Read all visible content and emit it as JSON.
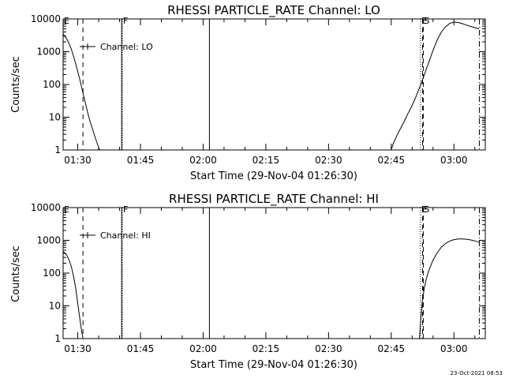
{
  "footer_timestamp": "23-Oct-2021 08:53",
  "chart_data": [
    {
      "type": "line",
      "title": "RHESSI PARTICLE_RATE Channel: LO",
      "xlabel": "Start Time (29-Nov-04 01:26:30)",
      "ylabel": "Counts/sec",
      "yscale": "log",
      "ylim": [
        1,
        10000
      ],
      "xlim": [
        "01:26:30",
        "03:07:30"
      ],
      "ytick_labels": [
        "1",
        "10",
        "100",
        "1000",
        "10000"
      ],
      "yticks": [
        1,
        10,
        100,
        1000,
        10000
      ],
      "xtick_labels": [
        "01:30",
        "01:45",
        "02:00",
        "02:15",
        "02:30",
        "02:45",
        "03:00"
      ],
      "legend": {
        "label": "Channel: LO",
        "position": "top-left"
      },
      "markers": [
        {
          "label": "E",
          "time": "01:26:30",
          "style": "dotted"
        },
        {
          "label": "F",
          "time": "01:40:40",
          "style": "dotted"
        },
        {
          "label": "E",
          "time": "02:52:00",
          "style": "dotted"
        },
        {
          "label": "S",
          "time": "02:52:40",
          "style": "solid-dashed"
        }
      ],
      "vlines": [
        {
          "time": "01:31:15",
          "style": "dashed"
        },
        {
          "time": "01:40:30",
          "style": "solid"
        },
        {
          "time": "02:01:30",
          "style": "solid"
        },
        {
          "time": "02:52:30",
          "style": "dashed"
        },
        {
          "time": "03:06:05",
          "style": "dashdot"
        }
      ],
      "series": [
        {
          "segments": [
            {
              "x": [
                "01:26:30",
                "01:27:00",
                "01:27:30",
                "01:28:00",
                "01:28:30",
                "01:29:00",
                "01:29:30",
                "01:30:00",
                "01:30:30",
                "01:31:00",
                "01:31:30",
                "01:32:00",
                "01:32:30",
                "01:33:00",
                "01:33:30",
                "01:34:00",
                "01:34:30",
                "01:35:00",
                "01:35:15"
              ],
              "y": [
                3500,
                2900,
                2300,
                1700,
                1150,
                720,
                430,
                250,
                140,
                75,
                40,
                22,
                12,
                7,
                4.5,
                2.8,
                1.8,
                1.2,
                1.0
              ]
            },
            {
              "x": [
                "02:45:00",
                "02:45:30",
                "02:46:00",
                "02:46:30",
                "02:47:00",
                "02:47:30",
                "02:48:00",
                "02:48:30",
                "02:49:00",
                "02:49:30",
                "02:50:00",
                "02:50:30",
                "02:51:00",
                "02:51:30",
                "02:52:00",
                "02:52:30",
                "02:53:00",
                "02:53:30",
                "02:54:00",
                "02:55:00",
                "02:56:00",
                "02:57:00",
                "02:58:00",
                "02:59:00",
                "03:00:00",
                "03:01:00",
                "03:02:00",
                "03:03:00",
                "03:04:00",
                "03:05:00",
                "03:06:00"
              ],
              "y": [
                1.0,
                1.6,
                2.2,
                3.0,
                4.0,
                5.3,
                7.0,
                9.5,
                13,
                17,
                23,
                32,
                45,
                65,
                95,
                140,
                210,
                320,
                480,
                1100,
                2300,
                4000,
                5800,
                7300,
                8000,
                7800,
                7200,
                6500,
                5900,
                5400,
                5000
              ]
            }
          ]
        }
      ]
    },
    {
      "type": "line",
      "title": "RHESSI PARTICLE_RATE Channel: HI",
      "xlabel": "Start Time (29-Nov-04 01:26:30)",
      "ylabel": "Counts/sec",
      "yscale": "log",
      "ylim": [
        1,
        10000
      ],
      "xlim": [
        "01:26:30",
        "03:07:30"
      ],
      "ytick_labels": [
        "1",
        "10",
        "100",
        "1000",
        "10000"
      ],
      "yticks": [
        1,
        10,
        100,
        1000,
        10000
      ],
      "xtick_labels": [
        "01:30",
        "01:45",
        "02:00",
        "02:15",
        "02:30",
        "02:45",
        "03:00"
      ],
      "legend": {
        "label": "Channel: HI",
        "position": "top-left"
      },
      "markers": [
        {
          "label": "E",
          "time": "01:26:30",
          "style": "dotted"
        },
        {
          "label": "F",
          "time": "01:40:40",
          "style": "dotted"
        },
        {
          "label": "E",
          "time": "02:52:00",
          "style": "dotted"
        },
        {
          "label": "S",
          "time": "02:52:40",
          "style": "solid-dashed"
        }
      ],
      "vlines": [
        {
          "time": "01:31:15",
          "style": "dashed"
        },
        {
          "time": "01:40:30",
          "style": "solid"
        },
        {
          "time": "02:01:30",
          "style": "solid"
        },
        {
          "time": "02:52:30",
          "style": "dashed"
        },
        {
          "time": "03:06:05",
          "style": "dashdot"
        }
      ],
      "series": [
        {
          "segments": [
            {
              "x": [
                "01:26:30",
                "01:27:00",
                "01:27:30",
                "01:28:00",
                "01:28:30",
                "01:29:00",
                "01:29:30",
                "01:30:00",
                "01:30:30",
                "01:31:00",
                "01:31:15"
              ],
              "y": [
                450,
                400,
                330,
                240,
                150,
                80,
                35,
                12,
                4.0,
                1.5,
                1.0
              ]
            },
            {
              "x": [
                "02:51:45",
                "02:52:00",
                "02:52:15",
                "02:52:30",
                "02:53:00",
                "02:53:30",
                "02:54:00",
                "02:55:00",
                "02:56:00",
                "02:57:00",
                "02:58:00",
                "02:59:00",
                "03:00:00",
                "03:01:00",
                "03:02:00",
                "03:03:00",
                "03:04:00",
                "03:05:00",
                "03:06:00"
              ],
              "y": [
                1.0,
                3,
                7,
                16,
                40,
                75,
                120,
                250,
                420,
                620,
                800,
                950,
                1050,
                1100,
                1100,
                1080,
                1030,
                960,
                880
              ]
            }
          ]
        }
      ]
    }
  ]
}
